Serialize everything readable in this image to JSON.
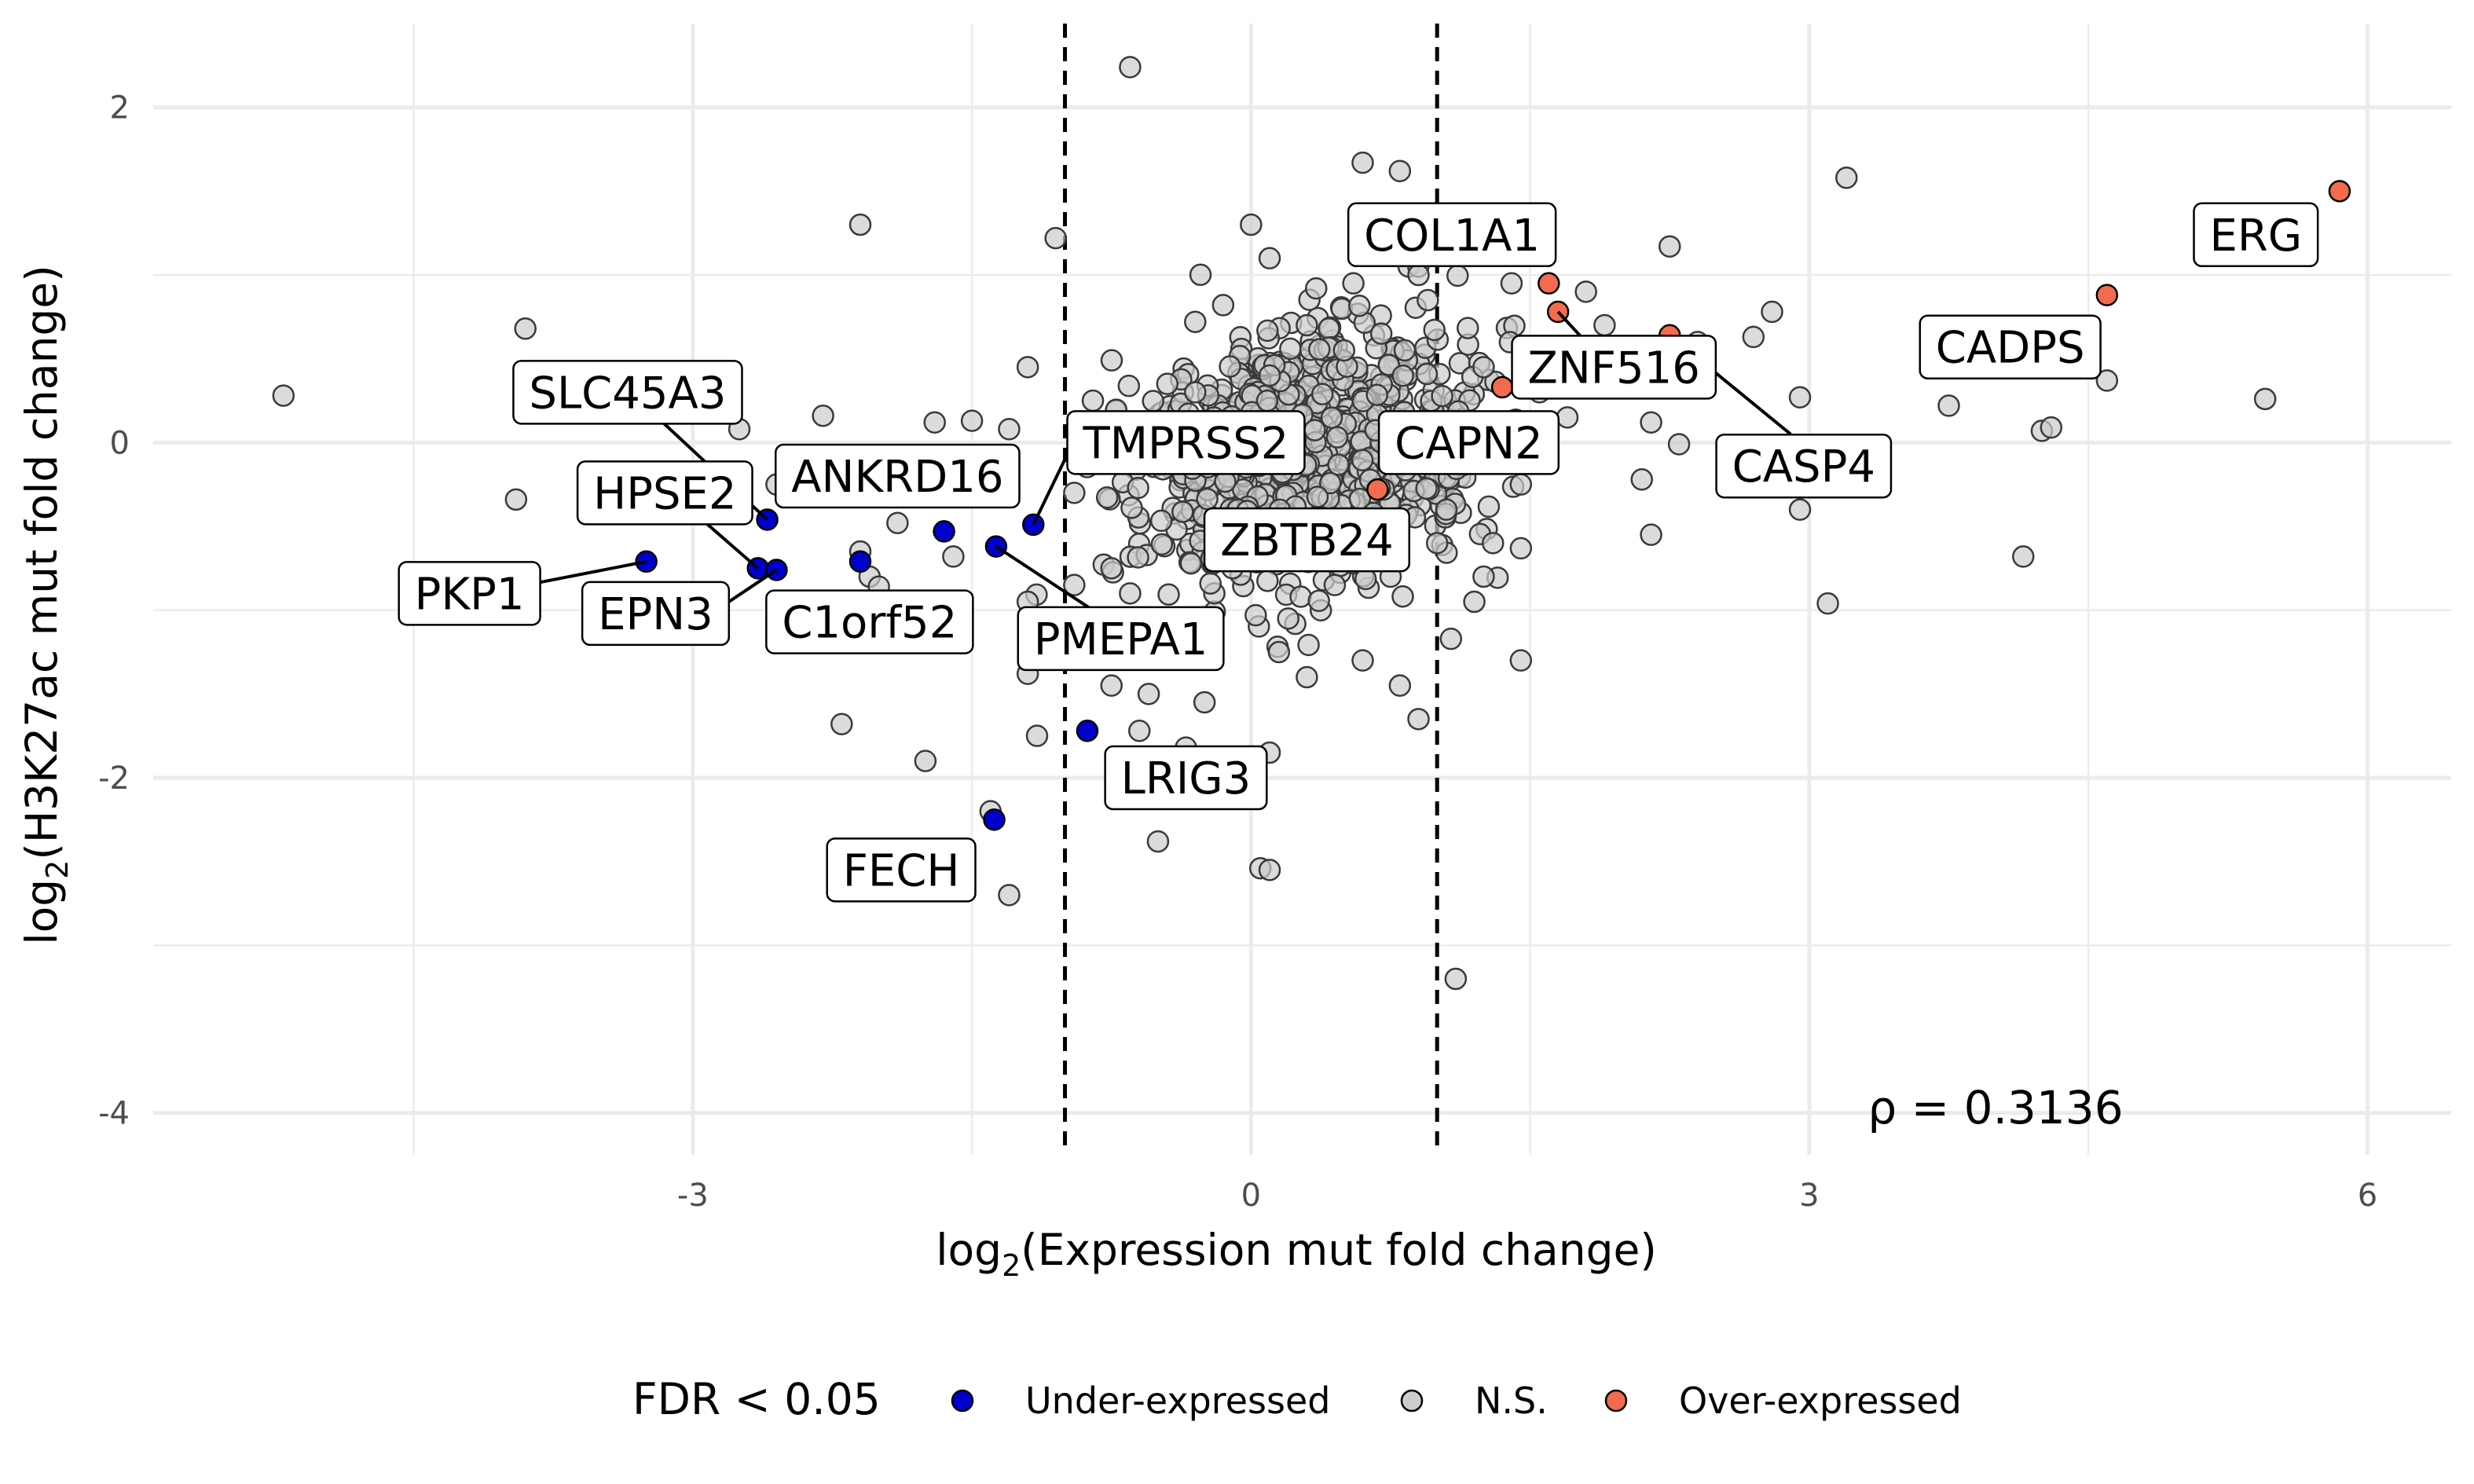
{
  "chart_data": {
    "type": "scatter",
    "xlabel": "log2(Expression mut fold change)",
    "ylabel": "log2(H3K27ac mut fold change)",
    "xlim": [
      -5.9,
      6.45
    ],
    "ylim": [
      -4.25,
      2.5
    ],
    "x_ticks": [
      -3,
      0,
      3,
      6
    ],
    "x_tick_labels": [
      "-3",
      "0",
      "3",
      "6"
    ],
    "y_ticks": [
      -4,
      -2,
      0,
      2
    ],
    "y_tick_labels": [
      "-4",
      "-2",
      "0",
      "2"
    ],
    "grid": true,
    "vlines": [
      -1,
      1
    ],
    "annotation": "ρ = 0.3136",
    "legend": {
      "title": "FDR < 0.05",
      "position": "bottom",
      "entries": [
        {
          "label": "Under-expressed",
          "color": "#0000cc"
        },
        {
          "label": "N.S.",
          "color": "#cccccc"
        },
        {
          "label": "Over-expressed",
          "color": "#f26b4f"
        }
      ]
    },
    "colors": {
      "under": "#0000cc",
      "ns": "#cccccc",
      "over": "#f26b4f"
    },
    "ns_cloud_summary": {
      "count": 1000,
      "x_mean": 0.3,
      "y_mean": -0.1,
      "x_sd": 0.45,
      "y_sd": 0.35
    },
    "ns_points": [
      [
        -5.2,
        0.28
      ],
      [
        -3.9,
        0.68
      ],
      [
        -3.95,
        -0.34
      ],
      [
        -2.1,
        1.3
      ],
      [
        -1.05,
        1.22
      ],
      [
        -0.65,
        2.24
      ],
      [
        -2.3,
        0.16
      ],
      [
        -2.75,
        0.08
      ],
      [
        -1.5,
        0.13
      ],
      [
        -1.7,
        0.12
      ],
      [
        -1.2,
        0.45
      ],
      [
        -1.3,
        0.08
      ],
      [
        -2.55,
        -0.25
      ],
      [
        -2.1,
        -0.65
      ],
      [
        -2.05,
        -0.8
      ],
      [
        -1.9,
        -0.48
      ],
      [
        -1.6,
        -0.68
      ],
      [
        -2.0,
        -0.86
      ],
      [
        -2.2,
        -1.68
      ],
      [
        -1.75,
        -1.9
      ],
      [
        -1.4,
        -2.2
      ],
      [
        -1.3,
        -2.7
      ],
      [
        -1.15,
        -1.75
      ],
      [
        -0.5,
        -2.38
      ],
      [
        -0.75,
        -1.45
      ],
      [
        -0.55,
        -1.5
      ],
      [
        -0.6,
        -1.72
      ],
      [
        -0.35,
        -1.82
      ],
      [
        -0.25,
        -1.55
      ],
      [
        0.05,
        -2.54
      ],
      [
        0.1,
        -2.55
      ],
      [
        -0.05,
        -1.9
      ],
      [
        0.1,
        -1.85
      ],
      [
        0.6,
        -1.3
      ],
      [
        0.9,
        -1.65
      ],
      [
        0.8,
        -1.45
      ],
      [
        0.3,
        -1.4
      ],
      [
        0.15,
        -1.25
      ],
      [
        1.2,
        -0.95
      ],
      [
        1.45,
        -1.3
      ],
      [
        1.25,
        -0.8
      ],
      [
        1.1,
        -3.2
      ],
      [
        0.6,
        1.67
      ],
      [
        0.8,
        1.62
      ],
      [
        0.0,
        1.3
      ],
      [
        0.9,
        1.0
      ],
      [
        0.1,
        1.1
      ],
      [
        1.4,
        0.95
      ],
      [
        1.9,
        0.7
      ],
      [
        1.8,
        0.9
      ],
      [
        2.25,
        1.17
      ],
      [
        2.8,
        0.78
      ],
      [
        2.7,
        0.63
      ],
      [
        2.4,
        0.6
      ],
      [
        2.15,
        0.12
      ],
      [
        2.3,
        -0.01
      ],
      [
        2.1,
        -0.22
      ],
      [
        2.15,
        -0.55
      ],
      [
        2.95,
        -0.4
      ],
      [
        2.95,
        0.27
      ],
      [
        3.2,
        1.58
      ],
      [
        3.1,
        -0.96
      ],
      [
        3.75,
        0.22
      ],
      [
        4.25,
        0.07
      ],
      [
        4.3,
        0.09
      ],
      [
        4.15,
        -0.68
      ],
      [
        4.6,
        0.37
      ],
      [
        5.45,
        0.26
      ],
      [
        1.45,
        -0.25
      ],
      [
        1.3,
        -0.6
      ],
      [
        1.05,
        -0.4
      ],
      [
        1.0,
        -0.6
      ],
      [
        -0.15,
        0.82
      ],
      [
        -0.3,
        0.72
      ],
      [
        -0.85,
        0.25
      ],
      [
        -0.95,
        -0.3
      ],
      [
        -0.75,
        -0.75
      ],
      [
        -0.65,
        -0.9
      ],
      [
        -0.45,
        -1.25
      ],
      [
        -1.2,
        -0.95
      ],
      [
        -1.2,
        -1.38
      ],
      [
        -1.3,
        -0.3
      ],
      [
        -0.95,
        -0.85
      ],
      [
        -0.45,
        0.35
      ],
      [
        -0.3,
        0.3
      ],
      [
        -0.2,
        0.15
      ],
      [
        0.35,
        0.92
      ],
      [
        0.55,
        0.95
      ],
      [
        0.95,
        0.85
      ],
      [
        1.25,
        0.45
      ],
      [
        0.2,
        -1.05
      ],
      [
        0.6,
        -0.6
      ],
      [
        0.75,
        -0.8
      ],
      [
        0.45,
        -0.85
      ],
      [
        -0.1,
        -0.75
      ],
      [
        1.7,
        0.15
      ],
      [
        1.55,
        0.3
      ],
      [
        1.8,
        0.45
      ],
      [
        0.5,
        0.55
      ],
      [
        0.7,
        0.65
      ],
      [
        0.3,
        0.7
      ],
      [
        0.1,
        0.4
      ]
    ],
    "highlighted": [
      {
        "label": "SLC45A3",
        "x": -2.6,
        "y": -0.46,
        "group": "under"
      },
      {
        "label": "HPSE2",
        "x": -2.65,
        "y": -0.75,
        "group": "under"
      },
      {
        "label": "PKP1",
        "x": -3.25,
        "y": -0.71,
        "group": "under"
      },
      {
        "label": "EPN3",
        "x": -2.55,
        "y": -0.76,
        "group": "under"
      },
      {
        "label": "ANKRD16",
        "x": -2.1,
        "y": -0.71,
        "group": "under"
      },
      {
        "label": "C1orf52",
        "x": -1.65,
        "y": -0.53,
        "group": "under"
      },
      {
        "label": "TMPRSS2",
        "x": -1.17,
        "y": -0.49,
        "group": "under"
      },
      {
        "label": "PMEPA1",
        "x": -1.37,
        "y": -0.62,
        "group": "under"
      },
      {
        "label": "LRIG3",
        "x": -0.88,
        "y": -1.72,
        "group": "under"
      },
      {
        "label": "FECH",
        "x": -1.38,
        "y": -2.25,
        "group": "under"
      },
      {
        "label": "COL1A1",
        "x": 1.6,
        "y": 0.95,
        "group": "over"
      },
      {
        "label": "ZNF516",
        "x": 1.65,
        "y": 0.78,
        "group": "over"
      },
      {
        "label": "CASP4",
        "x": 2.25,
        "y": 0.64,
        "group": "over"
      },
      {
        "label": "CAPN2",
        "x": 1.35,
        "y": 0.33,
        "group": "over"
      },
      {
        "label": "ZBTB24",
        "x": 0.68,
        "y": -0.28,
        "group": "over"
      },
      {
        "label": "CADPS",
        "x": 4.6,
        "y": 0.88,
        "group": "over"
      },
      {
        "label": "ERG",
        "x": 5.85,
        "y": 1.5,
        "group": "over"
      }
    ],
    "labels": [
      {
        "text": "SLC45A3",
        "x": -3.35,
        "y": 0.3
      },
      {
        "text": "HPSE2",
        "x": -3.15,
        "y": -0.3
      },
      {
        "text": "PKP1",
        "x": -4.2,
        "y": -0.9
      },
      {
        "text": "EPN3",
        "x": -3.2,
        "y": -1.02
      },
      {
        "text": "ANKRD16",
        "x": -1.9,
        "y": -0.2
      },
      {
        "text": "C1orf52",
        "x": -2.05,
        "y": -1.07
      },
      {
        "text": "TMPRSS2",
        "x": -0.35,
        "y": 0.0
      },
      {
        "text": "PMEPA1",
        "x": -0.7,
        "y": -1.17
      },
      {
        "text": "LRIG3",
        "x": -0.35,
        "y": -2.0
      },
      {
        "text": "FECH",
        "x": -1.88,
        "y": -2.55
      },
      {
        "text": "COL1A1",
        "x": 1.08,
        "y": 1.24
      },
      {
        "text": "ZNF516",
        "x": 1.95,
        "y": 0.45
      },
      {
        "text": "CASP4",
        "x": 2.97,
        "y": -0.14
      },
      {
        "text": "CAPN2",
        "x": 1.17,
        "y": 0.0
      },
      {
        "text": "ZBTB24",
        "x": 0.3,
        "y": -0.58
      },
      {
        "text": "CADPS",
        "x": 4.08,
        "y": 0.57
      },
      {
        "text": "ERG",
        "x": 5.4,
        "y": 1.24
      }
    ],
    "leaders": [
      {
        "gene": "SLC45A3",
        "x1": -3.2,
        "y1": 0.16,
        "x2": -2.6,
        "y2": -0.46
      },
      {
        "gene": "HPSE2",
        "x1": -2.95,
        "y1": -0.46,
        "x2": -2.65,
        "y2": -0.75
      },
      {
        "gene": "PKP1",
        "x1": -3.85,
        "y1": -0.84,
        "x2": -3.25,
        "y2": -0.71
      },
      {
        "gene": "EPN3",
        "x1": -2.82,
        "y1": -0.96,
        "x2": -2.55,
        "y2": -0.76
      },
      {
        "gene": "TMPRSS2",
        "x1": -1.0,
        "y1": -0.1,
        "x2": -1.17,
        "y2": -0.49
      },
      {
        "gene": "PMEPA1",
        "x1": -0.85,
        "y1": -1.0,
        "x2": -1.37,
        "y2": -0.62
      },
      {
        "gene": "ZNF516",
        "x1": 1.8,
        "y1": 0.6,
        "x2": 1.65,
        "y2": 0.78
      },
      {
        "gene": "CASP4",
        "x1": 2.9,
        "y1": 0.05,
        "x2": 2.25,
        "y2": 0.64
      }
    ]
  }
}
